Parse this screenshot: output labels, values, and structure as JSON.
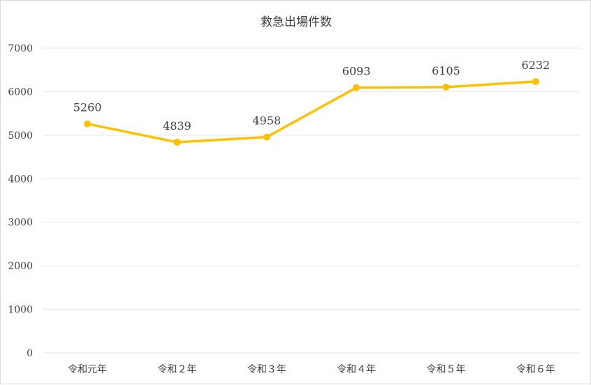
{
  "chart_data": {
    "type": "line",
    "title": "救急出場件数",
    "categories": [
      "令和元年",
      "令和２年",
      "令和３年",
      "令和４年",
      "令和５年",
      "令和６年"
    ],
    "values": [
      5260,
      4839,
      4958,
      6093,
      6105,
      6232
    ],
    "ylim": [
      0,
      7000
    ],
    "yticks": [
      0,
      1000,
      2000,
      3000,
      4000,
      5000,
      6000,
      7000
    ],
    "grid": true,
    "data_labels": true,
    "line_color": "#FFC000",
    "gridline_color": "#E6E6E6"
  }
}
